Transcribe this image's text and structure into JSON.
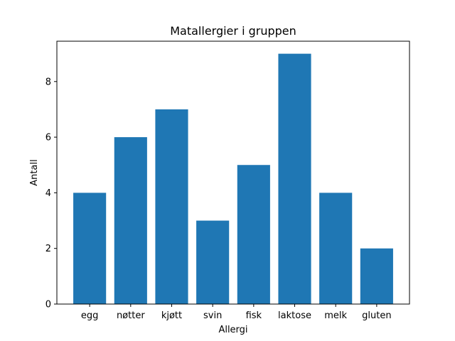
{
  "chart_data": {
    "type": "bar",
    "title": "Matallergier i gruppen",
    "xlabel": "Allergi",
    "ylabel": "Antall",
    "categories": [
      "egg",
      "nøtter",
      "kjøtt",
      "svin",
      "fisk",
      "laktose",
      "melk",
      "gluten"
    ],
    "values": [
      4,
      6,
      7,
      3,
      5,
      9,
      4,
      2
    ],
    "ylim": [
      0,
      9.45
    ],
    "yticks": [
      0,
      2,
      4,
      6,
      8
    ],
    "grid": false,
    "bar_color": "#1f77b4"
  }
}
